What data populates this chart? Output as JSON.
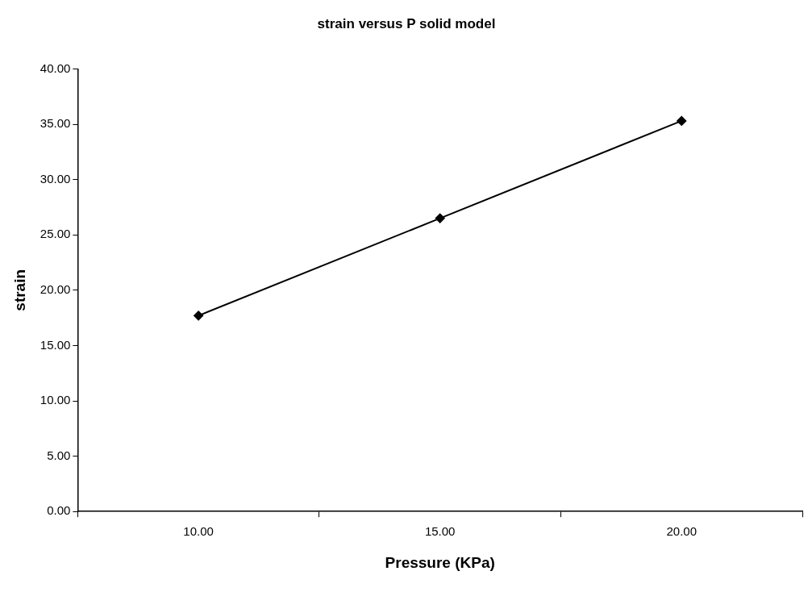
{
  "chart_data": {
    "type": "line",
    "title": "strain versus P solid model",
    "xlabel": "Pressure (KPa)",
    "ylabel": "strain",
    "categories": [
      "10.00",
      "15.00",
      "20.00"
    ],
    "series": [
      {
        "color": "#000000",
        "values": [
          17.7,
          26.5,
          35.3
        ]
      }
    ],
    "ylim": [
      0,
      40
    ],
    "yticks": [
      {
        "value": 0,
        "label": "0.00"
      },
      {
        "value": 5,
        "label": "5.00"
      },
      {
        "value": 10,
        "label": "10.00"
      },
      {
        "value": 15,
        "label": "15.00"
      },
      {
        "value": 20,
        "label": "20.00"
      },
      {
        "value": 25,
        "label": "25.00"
      },
      {
        "value": 30,
        "label": "30.00"
      },
      {
        "value": 35,
        "label": "35.00"
      },
      {
        "value": 40,
        "label": "40.00"
      }
    ],
    "grid": false,
    "legend": false,
    "marker": "diamond",
    "line_style": "solid"
  }
}
